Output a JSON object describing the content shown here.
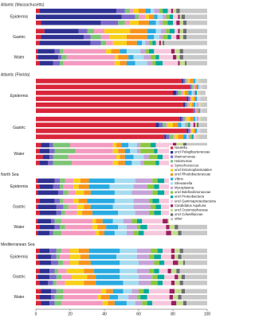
{
  "chart_data": {
    "type": "bar",
    "orientation": "horizontal",
    "stacked": true,
    "xlim": [
      0,
      100
    ],
    "xticks": [
      0,
      20,
      40,
      60,
      80,
      100
    ],
    "series": [
      {
        "name": "Nautella",
        "color": "#d9263a"
      },
      {
        "name": "uncl Pelagibacteraceae",
        "color": "#2e3192"
      },
      {
        "name": "Marinomonas",
        "color": "#7a68c9"
      },
      {
        "name": "Halomonas",
        "color": "#7cc576"
      },
      {
        "name": "Synechococcus",
        "color": "#f49ac1"
      },
      {
        "name": "uncl Entomoplasmatales",
        "color": "#f7d117"
      },
      {
        "name": "uncl Rhodobacteraceae",
        "color": "#f7941d"
      },
      {
        "name": "Vibrio",
        "color": "#29abe2"
      },
      {
        "name": "Shewanella",
        "color": "#a6dcef"
      },
      {
        "name": "Mycoplasma",
        "color": "#c5a3d9"
      },
      {
        "name": "uncl Bdellovibrionaceae",
        "color": "#8dc63f"
      },
      {
        "name": "uncl Proteobacteria",
        "color": "#00a99d"
      },
      {
        "name": "uncl Gammaproteobacteria",
        "color": "#f6c7dd"
      },
      {
        "name": "Candidatus Aquiluna",
        "color": "#9e1f63"
      },
      {
        "name": "uncl Cryomorphaceae",
        "color": "#c2dd8f"
      },
      {
        "name": "uncl Colwelliaceae",
        "color": "#6d6e71"
      },
      {
        "name": "other",
        "color": "#c8c8c8"
      }
    ],
    "panels": [
      {
        "title": "Atlantic (Massachusetts)",
        "groups": [
          {
            "label": "Epidermis",
            "bars": [
              [
                2,
                45,
                5,
                3,
                2,
                3,
                4,
                3,
                2,
                3,
                2,
                3,
                2,
                1,
                2,
                2,
                16
              ],
              [
                0,
                50,
                8,
                2,
                4,
                2,
                3,
                2,
                3,
                2,
                2,
                2,
                3,
                1,
                1,
                2,
                13
              ],
              [
                3,
                35,
                10,
                4,
                3,
                5,
                6,
                4,
                2,
                2,
                3,
                3,
                2,
                2,
                2,
                2,
                12
              ]
            ]
          },
          {
            "label": "Gastric",
            "bars": [
              [
                5,
                20,
                5,
                4,
                6,
                15,
                10,
                5,
                3,
                3,
                2,
                3,
                2,
                1,
                2,
                2,
                12
              ],
              [
                3,
                25,
                4,
                6,
                5,
                10,
                12,
                4,
                3,
                2,
                3,
                2,
                3,
                2,
                2,
                2,
                12
              ],
              [
                2,
                30,
                6,
                3,
                4,
                8,
                6,
                3,
                2,
                2,
                2,
                2,
                2,
                1,
                1,
                1,
                25
              ]
            ]
          },
          {
            "label": "Water",
            "bars": [
              [
                1,
                10,
                3,
                2,
                25,
                3,
                5,
                4,
                8,
                3,
                2,
                3,
                10,
                2,
                3,
                2,
                14
              ],
              [
                1,
                12,
                2,
                3,
                28,
                2,
                6,
                3,
                6,
                4,
                3,
                2,
                8,
                2,
                2,
                2,
                14
              ],
              [
                2,
                8,
                4,
                2,
                30,
                3,
                4,
                5,
                7,
                3,
                2,
                4,
                9,
                1,
                3,
                1,
                12
              ]
            ]
          }
        ]
      },
      {
        "title": "Atlantic (Florida)",
        "groups": [
          {
            "label": "Epidermis",
            "bars": [
              [
                85,
                1,
                1,
                1,
                1,
                1,
                2,
                1,
                1,
                0,
                0,
                0,
                1,
                0,
                1,
                0,
                4
              ],
              [
                90,
                0,
                1,
                1,
                1,
                0,
                1,
                1,
                1,
                0,
                0,
                0,
                1,
                0,
                0,
                0,
                3
              ],
              [
                80,
                2,
                1,
                2,
                1,
                1,
                2,
                2,
                1,
                1,
                0,
                1,
                1,
                0,
                1,
                0,
                3
              ],
              [
                88,
                1,
                1,
                0,
                1,
                1,
                1,
                1,
                1,
                0,
                0,
                0,
                1,
                0,
                0,
                0,
                4
              ],
              [
                86,
                1,
                1,
                1,
                1,
                1,
                1,
                1,
                1,
                1,
                0,
                0,
                1,
                0,
                1,
                0,
                3
              ],
              [
                92,
                0,
                1,
                0,
                1,
                0,
                1,
                1,
                0,
                0,
                0,
                0,
                1,
                0,
                0,
                0,
                3
              ]
            ]
          },
          {
            "label": "Gastric",
            "bars": [
              [
                84,
                1,
                1,
                1,
                1,
                2,
                2,
                1,
                1,
                1,
                0,
                0,
                1,
                0,
                1,
                0,
                3
              ],
              [
                70,
                2,
                2,
                2,
                1,
                3,
                3,
                2,
                2,
                1,
                1,
                1,
                2,
                1,
                1,
                1,
                5
              ],
              [
                88,
                1,
                1,
                0,
                1,
                1,
                1,
                1,
                1,
                0,
                0,
                0,
                1,
                0,
                0,
                0,
                4
              ],
              [
                75,
                1,
                2,
                2,
                1,
                2,
                3,
                2,
                1,
                1,
                1,
                1,
                2,
                0,
                1,
                0,
                5
              ]
            ]
          },
          {
            "label": "Water",
            "bars": [
              [
                3,
                5,
                2,
                10,
                25,
                2,
                3,
                4,
                5,
                2,
                6,
                3,
                10,
                2,
                4,
                2,
                12
              ],
              [
                2,
                6,
                3,
                12,
                22,
                3,
                4,
                3,
                4,
                2,
                8,
                2,
                8,
                3,
                3,
                2,
                13
              ],
              [
                4,
                4,
                2,
                9,
                28,
                2,
                3,
                5,
                6,
                3,
                5,
                3,
                9,
                2,
                2,
                1,
                12
              ],
              [
                2,
                5,
                3,
                11,
                24,
                3,
                4,
                4,
                5,
                2,
                7,
                2,
                9,
                2,
                3,
                2,
                12
              ]
            ]
          }
        ]
      },
      {
        "title": "North Sea",
        "groups": [
          {
            "label": "Epidermis",
            "bars": [
              [
                1,
                10,
                3,
                3,
                5,
                4,
                5,
                15,
                12,
                10,
                3,
                4,
                5,
                2,
                3,
                2,
                13
              ],
              [
                2,
                8,
                4,
                2,
                6,
                3,
                6,
                12,
                14,
                8,
                4,
                3,
                6,
                3,
                2,
                2,
                14
              ],
              [
                1,
                12,
                3,
                3,
                4,
                5,
                4,
                14,
                10,
                12,
                3,
                4,
                5,
                2,
                3,
                2,
                12
              ]
            ]
          },
          {
            "label": "Gastric",
            "bars": [
              [
                2,
                9,
                3,
                2,
                6,
                3,
                5,
                16,
                11,
                9,
                2,
                4,
                6,
                2,
                3,
                2,
                15
              ],
              [
                1,
                11,
                4,
                3,
                5,
                4,
                4,
                13,
                12,
                10,
                3,
                3,
                5,
                3,
                2,
                2,
                15
              ],
              [
                2,
                10,
                3,
                2,
                7,
                3,
                6,
                15,
                10,
                8,
                3,
                4,
                6,
                2,
                3,
                2,
                14
              ]
            ]
          },
          {
            "label": "Water",
            "bars": [
              [
                1,
                8,
                2,
                4,
                18,
                2,
                4,
                6,
                6,
                5,
                3,
                3,
                12,
                3,
                4,
                2,
                17
              ],
              [
                2,
                9,
                3,
                3,
                16,
                3,
                5,
                7,
                5,
                6,
                2,
                4,
                11,
                2,
                3,
                2,
                17
              ],
              [
                1,
                7,
                2,
                5,
                20,
                2,
                3,
                6,
                7,
                4,
                3,
                3,
                13,
                3,
                4,
                2,
                15
              ]
            ]
          }
        ]
      },
      {
        "title": "Mediterranean Sea",
        "groups": [
          {
            "label": "Epidermis",
            "bars": [
              [
                2,
                6,
                4,
                3,
                5,
                5,
                6,
                18,
                10,
                8,
                4,
                3,
                5,
                2,
                3,
                2,
                14
              ],
              [
                1,
                8,
                3,
                2,
                6,
                6,
                5,
                16,
                12,
                7,
                3,
                4,
                6,
                2,
                2,
                2,
                15
              ],
              [
                2,
                7,
                4,
                3,
                4,
                5,
                7,
                17,
                11,
                9,
                3,
                3,
                5,
                3,
                3,
                1,
                13
              ]
            ]
          },
          {
            "label": "Gastric",
            "bars": [
              [
                2,
                6,
                3,
                2,
                5,
                10,
                6,
                15,
                10,
                7,
                3,
                3,
                5,
                2,
                3,
                2,
                16
              ],
              [
                1,
                7,
                4,
                3,
                6,
                9,
                5,
                14,
                11,
                8,
                3,
                4,
                6,
                2,
                2,
                2,
                13
              ],
              [
                2,
                5,
                3,
                2,
                5,
                11,
                7,
                16,
                9,
                7,
                4,
                3,
                5,
                2,
                3,
                2,
                14
              ]
            ]
          },
          {
            "label": "Water",
            "bars": [
              [
                3,
                6,
                3,
                4,
                22,
                3,
                4,
                6,
                5,
                4,
                3,
                3,
                12,
                3,
                4,
                2,
                13
              ],
              [
                2,
                7,
                2,
                5,
                20,
                2,
                5,
                5,
                6,
                5,
                2,
                4,
                13,
                2,
                3,
                2,
                15
              ],
              [
                3,
                5,
                3,
                4,
                24,
                3,
                4,
                7,
                5,
                4,
                3,
                3,
                11,
                3,
                4,
                2,
                12
              ]
            ]
          }
        ]
      }
    ]
  }
}
